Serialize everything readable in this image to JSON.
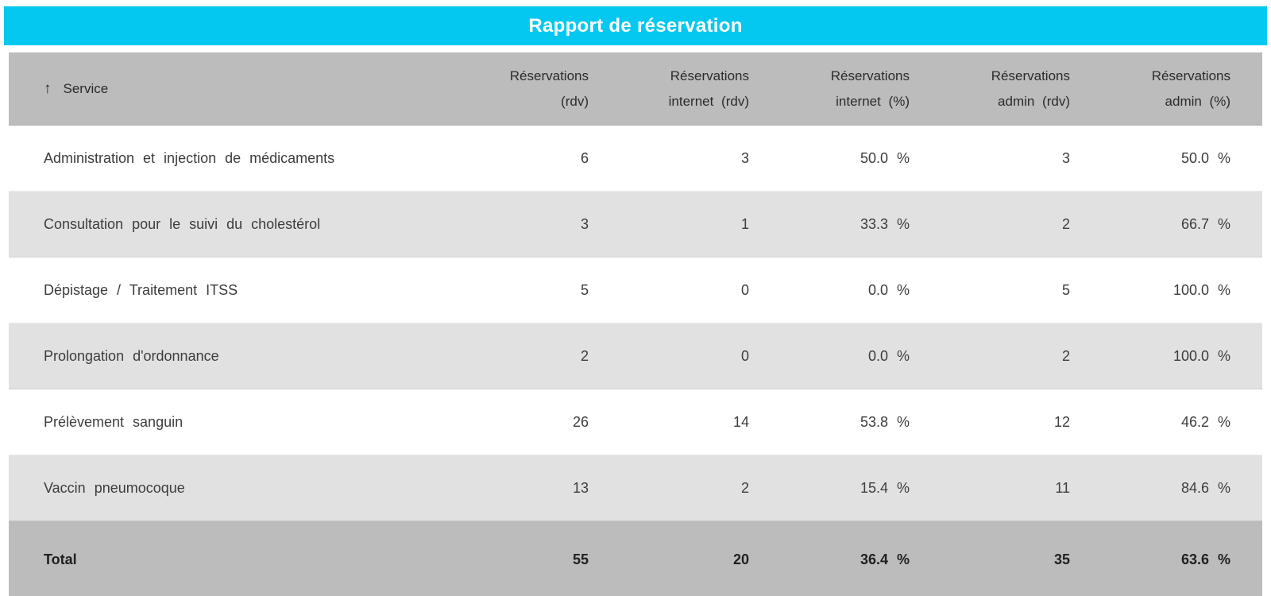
{
  "title": "Rapport de réservation",
  "colors": {
    "accent": "#05c8f0",
    "header_bg": "#bcbcbc",
    "stripe_bg": "#e1e1e1",
    "total_bg": "#bcbcbc"
  },
  "table": {
    "sort_icon": "↑",
    "service_header": "Service",
    "columns": [
      {
        "line1": "Réservations",
        "line2": "(rdv)"
      },
      {
        "line1": "Réservations",
        "line2": "internet (rdv)"
      },
      {
        "line1": "Réservations",
        "line2": "internet (%)"
      },
      {
        "line1": "Réservations",
        "line2": "admin (rdv)"
      },
      {
        "line1": "Réservations",
        "line2": "admin (%)"
      }
    ],
    "rows": [
      {
        "service": "Administration et injection de médicaments",
        "rdv": "6",
        "internet_rdv": "3",
        "internet_pct": "50.0 %",
        "admin_rdv": "3",
        "admin_pct": "50.0 %"
      },
      {
        "service": "Consultation pour le suivi du cholestérol",
        "rdv": "3",
        "internet_rdv": "1",
        "internet_pct": "33.3 %",
        "admin_rdv": "2",
        "admin_pct": "66.7 %"
      },
      {
        "service": "Dépistage / Traitement ITSS",
        "rdv": "5",
        "internet_rdv": "0",
        "internet_pct": "0.0 %",
        "admin_rdv": "5",
        "admin_pct": "100.0 %"
      },
      {
        "service": "Prolongation d'ordonnance",
        "rdv": "2",
        "internet_rdv": "0",
        "internet_pct": "0.0 %",
        "admin_rdv": "2",
        "admin_pct": "100.0 %"
      },
      {
        "service": "Prélèvement sanguin",
        "rdv": "26",
        "internet_rdv": "14",
        "internet_pct": "53.8 %",
        "admin_rdv": "12",
        "admin_pct": "46.2 %"
      },
      {
        "service": "Vaccin pneumocoque",
        "rdv": "13",
        "internet_rdv": "2",
        "internet_pct": "15.4 %",
        "admin_rdv": "11",
        "admin_pct": "84.6 %"
      }
    ],
    "total": {
      "label": "Total",
      "rdv": "55",
      "internet_rdv": "20",
      "internet_pct": "36.4 %",
      "admin_rdv": "35",
      "admin_pct": "63.6 %"
    }
  }
}
